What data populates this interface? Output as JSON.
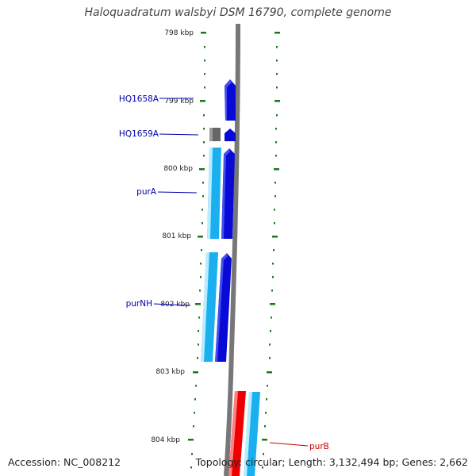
{
  "title": "Haloquadratum walsbyi DSM 16790, complete genome",
  "accession": "Accession: NC_008212",
  "topology": "Topology: circular; Length: 3,132,494 bp; Genes: 2,662",
  "ruler": {
    "tick_labels": [
      "798 kbp",
      "799 kbp",
      "800 kbp",
      "801 kbp",
      "802 kbp",
      "803 kbp",
      "804 kbp"
    ]
  },
  "genes": [
    {
      "name": "HQ1658A",
      "color": "#0a0ad8",
      "strand": "+"
    },
    {
      "name": "HQ1659A",
      "color": "#0a0ad8",
      "strand": "+"
    },
    {
      "name": "purA",
      "color": "#0a0ad8",
      "strand": "+"
    },
    {
      "name": "purNH",
      "color": "#0a0ad8",
      "strand": "+"
    },
    {
      "name": "purB",
      "color": "#cc0000",
      "strand": "-"
    }
  ],
  "feature_colors": {
    "cds_forward": "#0a0ad8",
    "gene_forward": "#1ab0f0",
    "cds_reverse": "#ee0000",
    "gene_reverse": "#1ab0f0",
    "other_feature": "#666666",
    "tick_marks": "#1a7a1a",
    "backbone": "#777777",
    "label_forward": "#0000aa",
    "label_reverse": "#cc0000"
  }
}
